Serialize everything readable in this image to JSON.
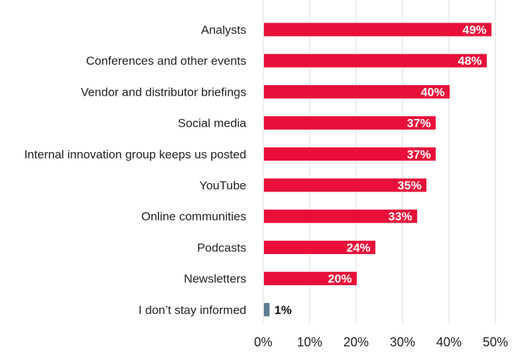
{
  "chart_data": {
    "type": "bar",
    "orientation": "horizontal",
    "categories": [
      "Analysts",
      "Conferences and other events",
      "Vendor and distributor briefings",
      "Social media",
      "Internal innovation group keeps us posted",
      "YouTube",
      "Online communities",
      "Podcasts",
      "Newsletters",
      "I don’t stay informed"
    ],
    "values": [
      49,
      48,
      40,
      37,
      37,
      35,
      33,
      24,
      20,
      1
    ],
    "data_labels": [
      "49%",
      "48%",
      "40%",
      "37%",
      "37%",
      "35%",
      "33%",
      "24%",
      "20%",
      "1%"
    ],
    "x_ticks": [
      "0%",
      "10%",
      "20%",
      "30%",
      "40%",
      "50%"
    ],
    "xlim": [
      0,
      50
    ],
    "grid": true,
    "colors": {
      "bar": "#e8103a",
      "highlight_bar": "#5f7d91",
      "highlight_label": "#111111",
      "bar_label": "#ffffff"
    },
    "highlight_index": 9
  }
}
